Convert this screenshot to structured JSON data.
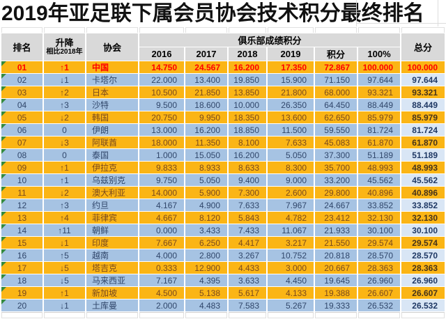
{
  "title": "2019年亚足联下属会员协会技术积分最终排名",
  "table": {
    "headers": {
      "rank": "排名",
      "change_line1": "升降",
      "change_line2": "相比2018年",
      "association": "协会",
      "club_group": "俱乐部成绩积分",
      "y2016": "2016",
      "y2017": "2017",
      "y2018": "2018",
      "y2019": "2019",
      "points": "积分",
      "percent": "100%",
      "total": "总分"
    },
    "rows": [
      {
        "rank": "01",
        "change": "↑1",
        "association": "中国",
        "y2016": "14.750",
        "y2017": "24.567",
        "y2018": "16.200",
        "y2019": "17.350",
        "points": "72.867",
        "percent": "100.000",
        "total": "100.000"
      },
      {
        "rank": "02",
        "change": "↓1",
        "association": "卡塔尔",
        "y2016": "22.000",
        "y2017": "13.400",
        "y2018": "19.850",
        "y2019": "15.900",
        "points": "71.150",
        "percent": "97.644",
        "total": "97.644"
      },
      {
        "rank": "03",
        "change": "↑2",
        "association": "日本",
        "y2016": "10.500",
        "y2017": "21.850",
        "y2018": "13.850",
        "y2019": "21.800",
        "points": "68.000",
        "percent": "93.321",
        "total": "93.321"
      },
      {
        "rank": "04",
        "change": "↑3",
        "association": "沙特",
        "y2016": "9.500",
        "y2017": "18.600",
        "y2018": "10.000",
        "y2019": "26.350",
        "points": "64.450",
        "percent": "88.449",
        "total": "88.449"
      },
      {
        "rank": "05",
        "change": "↓2",
        "association": "韩国",
        "y2016": "20.750",
        "y2017": "9.950",
        "y2018": "18.350",
        "y2019": "13.600",
        "points": "62.650",
        "percent": "85.979",
        "total": "85.979"
      },
      {
        "rank": "06",
        "change": "0",
        "association": "伊朗",
        "y2016": "13.000",
        "y2017": "16.200",
        "y2018": "18.850",
        "y2019": "11.500",
        "points": "59.550",
        "percent": "81.724",
        "total": "81.724"
      },
      {
        "rank": "07",
        "change": "↓3",
        "association": "阿联酋",
        "y2016": "18.000",
        "y2017": "11.350",
        "y2018": "8.100",
        "y2019": "7.633",
        "points": "45.083",
        "percent": "61.870",
        "total": "61.870"
      },
      {
        "rank": "08",
        "change": "0",
        "association": "泰国",
        "y2016": "1.000",
        "y2017": "15.050",
        "y2018": "16.200",
        "y2019": "5.050",
        "points": "37.300",
        "percent": "51.189",
        "total": "51.189"
      },
      {
        "rank": "09",
        "change": "↑1",
        "association": "伊拉克",
        "y2016": "9.833",
        "y2017": "8.933",
        "y2018": "8.633",
        "y2019": "8.300",
        "points": "35.700",
        "percent": "48.993",
        "total": "48.993"
      },
      {
        "rank": "10",
        "change": "↑1",
        "association": "乌兹别克",
        "y2016": "9.750",
        "y2017": "5.050",
        "y2018": "9.400",
        "y2019": "9.000",
        "points": "33.200",
        "percent": "45.562",
        "total": "45.562"
      },
      {
        "rank": "11",
        "change": "↓2",
        "association": "澳大利亚",
        "y2016": "14.000",
        "y2017": "5.900",
        "y2018": "7.300",
        "y2019": "2.600",
        "points": "29.800",
        "percent": "40.896",
        "total": "40.896"
      },
      {
        "rank": "12",
        "change": "↑3",
        "association": "约旦",
        "y2016": "4.167",
        "y2017": "4.900",
        "y2018": "7.633",
        "y2019": "7.967",
        "points": "24.667",
        "percent": "33.852",
        "total": "33.852"
      },
      {
        "rank": "13",
        "change": "↑4",
        "association": "菲律宾",
        "y2016": "4.667",
        "y2017": "8.120",
        "y2018": "5.843",
        "y2019": "4.782",
        "points": "23.412",
        "percent": "32.130",
        "total": "32.130"
      },
      {
        "rank": "14",
        "change": "↑11",
        "association": "朝鲜",
        "y2016": "0.000",
        "y2017": "3.433",
        "y2018": "7.433",
        "y2019": "11.067",
        "points": "21.933",
        "percent": "30.100",
        "total": "30.100"
      },
      {
        "rank": "15",
        "change": "↓1",
        "association": "印度",
        "y2016": "7.667",
        "y2017": "6.250",
        "y2018": "4.417",
        "y2019": "3.217",
        "points": "21.550",
        "percent": "29.574",
        "total": "29.574"
      },
      {
        "rank": "16",
        "change": "↑5",
        "association": "越南",
        "y2016": "4.000",
        "y2017": "2.800",
        "y2018": "3.267",
        "y2019": "10.752",
        "points": "20.818",
        "percent": "28.570",
        "total": "28.570"
      },
      {
        "rank": "17",
        "change": "↓5",
        "association": "塔吉克",
        "y2016": "0.333",
        "y2017": "12.900",
        "y2018": "4.433",
        "y2019": "3.000",
        "points": "20.667",
        "percent": "28.363",
        "total": "28.363"
      },
      {
        "rank": "18",
        "change": "↓5",
        "association": "马来西亚",
        "y2016": "7.167",
        "y2017": "4.395",
        "y2018": "3.633",
        "y2019": "4.450",
        "points": "19.645",
        "percent": "26.960",
        "total": "26.960"
      },
      {
        "rank": "19",
        "change": "↑1",
        "association": "新加坡",
        "y2016": "4.500",
        "y2017": "5.138",
        "y2018": "5.617",
        "y2019": "4.133",
        "points": "19.388",
        "percent": "26.607",
        "total": "26.607"
      },
      {
        "rank": "20",
        "change": "↓1",
        "association": "土库曼",
        "y2016": "2.000",
        "y2017": "4.483",
        "y2018": "7.583",
        "y2019": "5.267",
        "points": "19.333",
        "percent": "26.532",
        "total": "26.532"
      }
    ]
  },
  "icons": {
    "error_indicator": "green-triangle"
  },
  "colors": {
    "row_orange": "#FBB515",
    "row_blue": "#A6C3E3",
    "total_cell_blue": "#D9E6F5",
    "header_bg": "#D9D9D9",
    "first_row_text": "#FE0000",
    "orange_row_text": "#7A4A1E",
    "blue_row_text": "#31476B",
    "triangle_green": "#338A3E"
  }
}
